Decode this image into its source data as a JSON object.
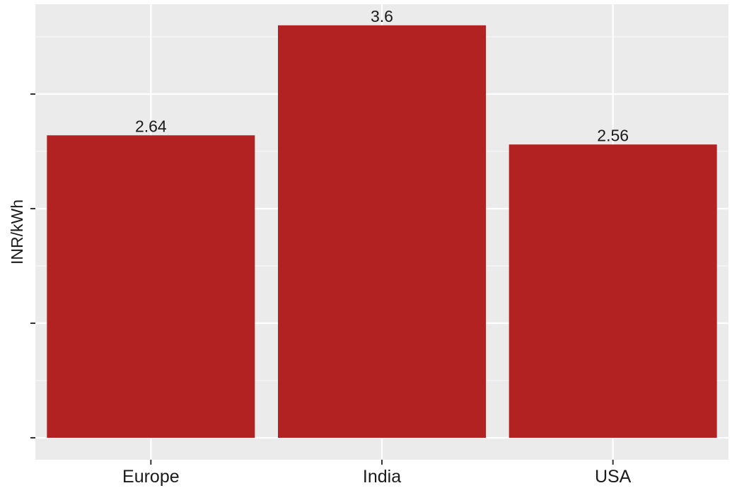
{
  "chart_data": {
    "type": "bar",
    "categories": [
      "Europe",
      "India",
      "USA"
    ],
    "values": [
      2.64,
      3.6,
      2.56
    ],
    "data_labels": [
      "2.64",
      "3.6",
      "2.56"
    ],
    "title": "",
    "xlabel": "",
    "ylabel": "INR/kWh",
    "ylim": [
      0,
      3.8
    ],
    "yticks": [
      0,
      1,
      2,
      3
    ],
    "ytick_labels_shown": false,
    "grid": true,
    "legend": "none",
    "colors": {
      "bar": "#b22222",
      "panel_background": "#ebebeb",
      "grid_line": "#ffffff",
      "tick_mark": "#333333"
    }
  }
}
